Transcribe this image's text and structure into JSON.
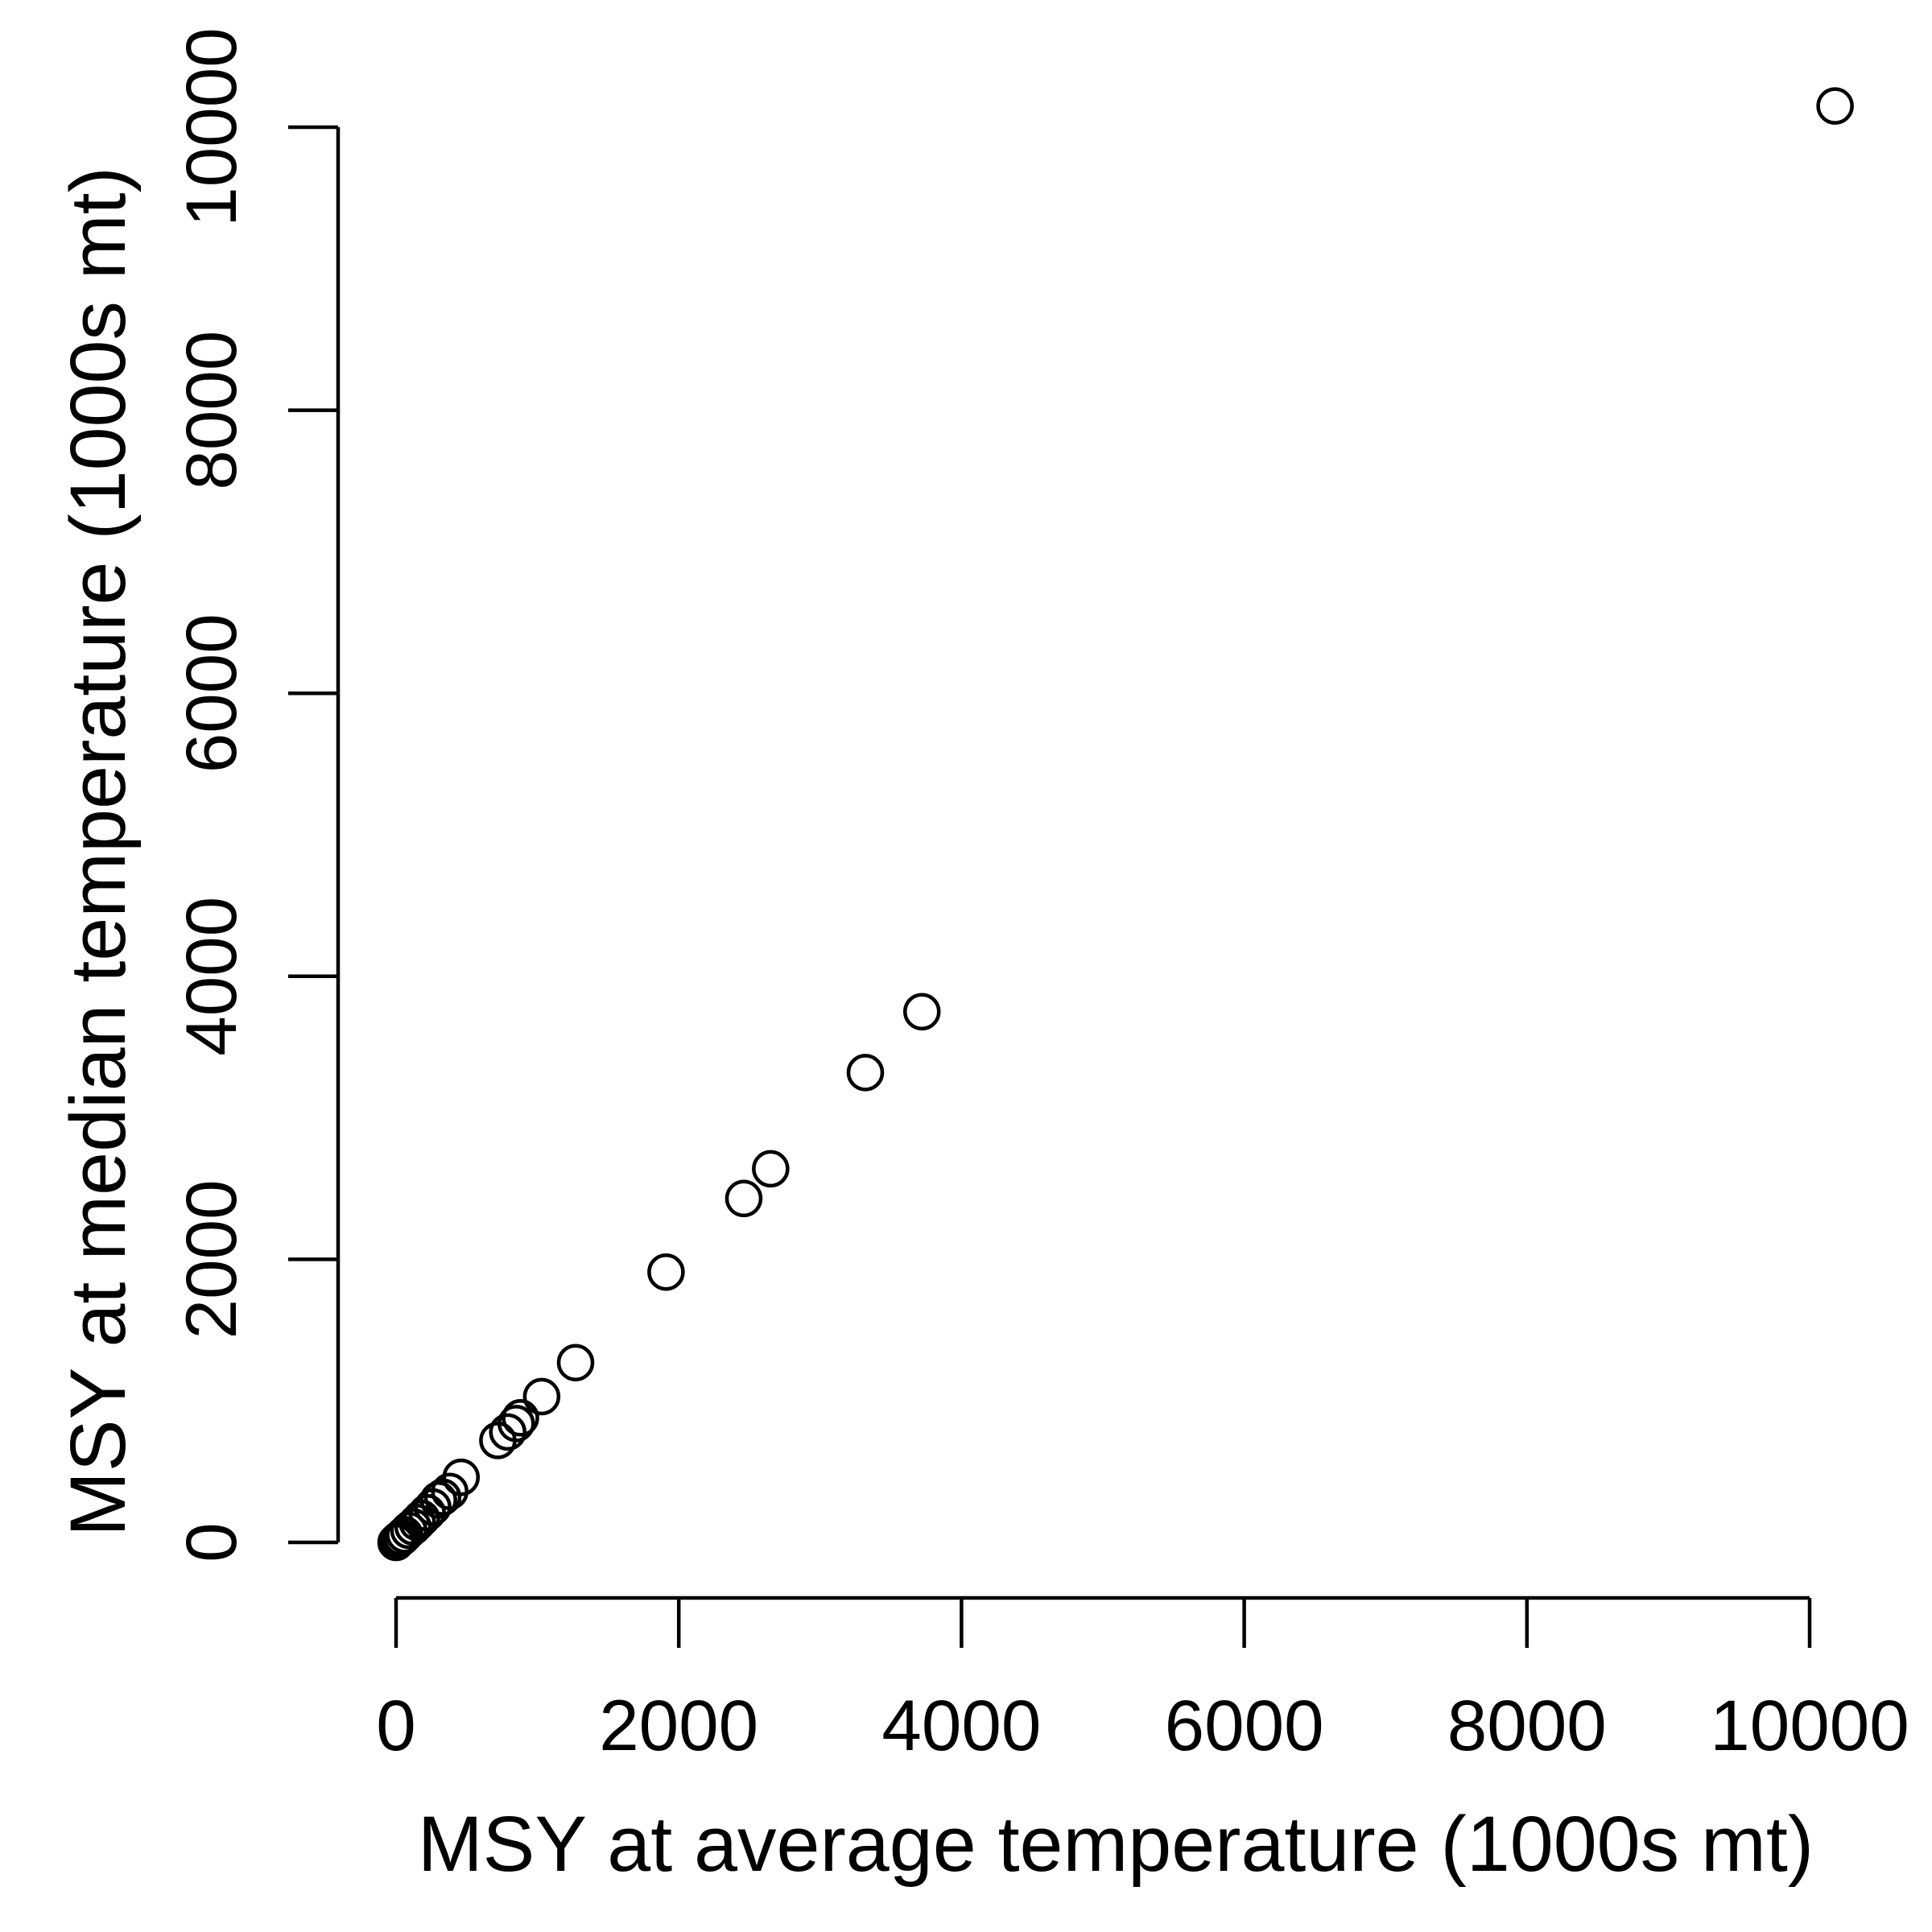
{
  "chart_data": {
    "type": "scatter",
    "title": "",
    "xlabel": "MSY at average temperature (1000s mt)",
    "ylabel": "MSY at median temperature (1000s mt)",
    "xlim": [
      0,
      10000
    ],
    "ylim": [
      0,
      10000
    ],
    "xticks": [
      0,
      2000,
      4000,
      6000,
      8000,
      10000
    ],
    "yticks": [
      0,
      2000,
      4000,
      6000,
      8000,
      10000
    ],
    "grid": false,
    "legend": "none",
    "marker": "open-circle",
    "color": "#000000",
    "points": [
      {
        "x": 0,
        "y": 0
      },
      {
        "x": 10,
        "y": 10
      },
      {
        "x": 20,
        "y": 20
      },
      {
        "x": 40,
        "y": 35
      },
      {
        "x": 60,
        "y": 55
      },
      {
        "x": 90,
        "y": 85
      },
      {
        "x": 120,
        "y": 110
      },
      {
        "x": 150,
        "y": 140
      },
      {
        "x": 180,
        "y": 170
      },
      {
        "x": 220,
        "y": 210
      },
      {
        "x": 260,
        "y": 250
      },
      {
        "x": 300,
        "y": 300
      },
      {
        "x": 330,
        "y": 320
      },
      {
        "x": 380,
        "y": 360
      },
      {
        "x": 460,
        "y": 460
      },
      {
        "x": 720,
        "y": 720
      },
      {
        "x": 790,
        "y": 780
      },
      {
        "x": 850,
        "y": 840
      },
      {
        "x": 880,
        "y": 880
      },
      {
        "x": 1030,
        "y": 1030
      },
      {
        "x": 1270,
        "y": 1270
      },
      {
        "x": 1910,
        "y": 1910
      },
      {
        "x": 2460,
        "y": 2430
      },
      {
        "x": 2650,
        "y": 2640
      },
      {
        "x": 3320,
        "y": 3320
      },
      {
        "x": 3720,
        "y": 3750
      },
      {
        "x": 10180,
        "y": 10150
      }
    ]
  }
}
